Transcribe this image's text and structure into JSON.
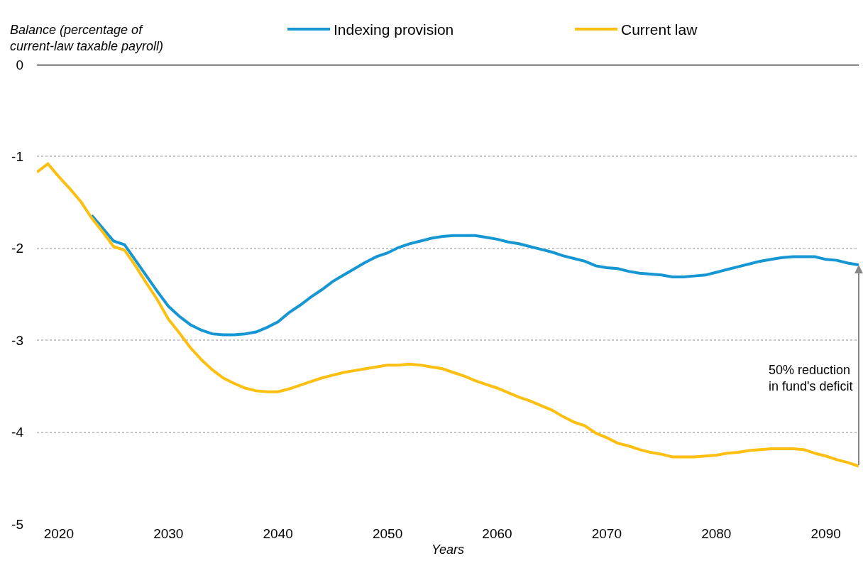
{
  "chart_data": {
    "type": "line",
    "ylabel": "Balance (percentage of\ncurrent-law taxable payroll)",
    "xlabel": "Years",
    "x": [
      2018,
      2019,
      2020,
      2021,
      2022,
      2023,
      2024,
      2025,
      2026,
      2027,
      2028,
      2029,
      2030,
      2031,
      2032,
      2033,
      2034,
      2035,
      2036,
      2037,
      2038,
      2039,
      2040,
      2041,
      2042,
      2043,
      2044,
      2045,
      2046,
      2047,
      2048,
      2049,
      2050,
      2051,
      2052,
      2053,
      2054,
      2055,
      2056,
      2057,
      2058,
      2059,
      2060,
      2061,
      2062,
      2063,
      2064,
      2065,
      2066,
      2067,
      2068,
      2069,
      2070,
      2071,
      2072,
      2073,
      2074,
      2075,
      2076,
      2077,
      2078,
      2079,
      2080,
      2081,
      2082,
      2083,
      2084,
      2085,
      2086,
      2087,
      2088,
      2089,
      2090,
      2091,
      2092,
      2093
    ],
    "series": [
      {
        "name": "Indexing provision",
        "color": "#1696d2",
        "values": [
          null,
          null,
          null,
          null,
          null,
          -1.64,
          -1.78,
          -1.92,
          -1.96,
          -2.13,
          -2.3,
          -2.47,
          -2.63,
          -2.74,
          -2.83,
          -2.89,
          -2.93,
          -2.94,
          -2.94,
          -2.93,
          -2.91,
          -2.86,
          -2.8,
          -2.7,
          -2.62,
          -2.53,
          -2.45,
          -2.36,
          -2.29,
          -2.22,
          -2.15,
          -2.09,
          -2.05,
          -1.99,
          -1.95,
          -1.92,
          -1.89,
          -1.87,
          -1.86,
          -1.86,
          -1.86,
          -1.88,
          -1.9,
          -1.93,
          -1.95,
          -1.98,
          -2.01,
          -2.04,
          -2.08,
          -2.11,
          -2.14,
          -2.19,
          -2.21,
          -2.22,
          -2.25,
          -2.27,
          -2.28,
          -2.29,
          -2.31,
          -2.31,
          -2.3,
          -2.29,
          -2.26,
          -2.23,
          -2.2,
          -2.17,
          -2.14,
          -2.12,
          -2.1,
          -2.09,
          -2.09,
          -2.09,
          -2.12,
          -2.13,
          -2.16,
          -2.18
        ]
      },
      {
        "name": "Current law",
        "color": "#fdbf11",
        "values": [
          -1.17,
          -1.08,
          -1.22,
          -1.35,
          -1.49,
          -1.67,
          -1.82,
          -1.98,
          -2.02,
          -2.19,
          -2.38,
          -2.56,
          -2.77,
          -2.92,
          -3.08,
          -3.21,
          -3.32,
          -3.41,
          -3.47,
          -3.52,
          -3.55,
          -3.56,
          -3.56,
          -3.53,
          -3.49,
          -3.45,
          -3.41,
          -3.38,
          -3.35,
          -3.33,
          -3.31,
          -3.29,
          -3.27,
          -3.27,
          -3.26,
          -3.27,
          -3.29,
          -3.31,
          -3.35,
          -3.39,
          -3.44,
          -3.48,
          -3.52,
          -3.57,
          -3.62,
          -3.66,
          -3.71,
          -3.76,
          -3.83,
          -3.89,
          -3.93,
          -4.01,
          -4.06,
          -4.12,
          -4.15,
          -4.19,
          -4.22,
          -4.24,
          -4.27,
          -4.27,
          -4.27,
          -4.26,
          -4.25,
          -4.23,
          -4.22,
          -4.2,
          -4.19,
          -4.18,
          -4.18,
          -4.18,
          -4.19,
          -4.23,
          -4.26,
          -4.3,
          -4.33,
          -4.37
        ]
      }
    ],
    "xlim": [
      2018,
      2093
    ],
    "xticks": [
      2020,
      2030,
      2040,
      2050,
      2060,
      2070,
      2080,
      2090
    ],
    "ylim": [
      -5,
      0
    ],
    "yticks": [
      0,
      -1,
      -2,
      -3,
      -4,
      -5
    ],
    "ref_lines": [
      {
        "axis": "y",
        "value": 0,
        "color": "#000000"
      }
    ],
    "annotations": [
      "50% reduction\nin fund's deficit"
    ],
    "grid": "y",
    "legend": "top right",
    "line_style": "solid",
    "marker": "none"
  }
}
